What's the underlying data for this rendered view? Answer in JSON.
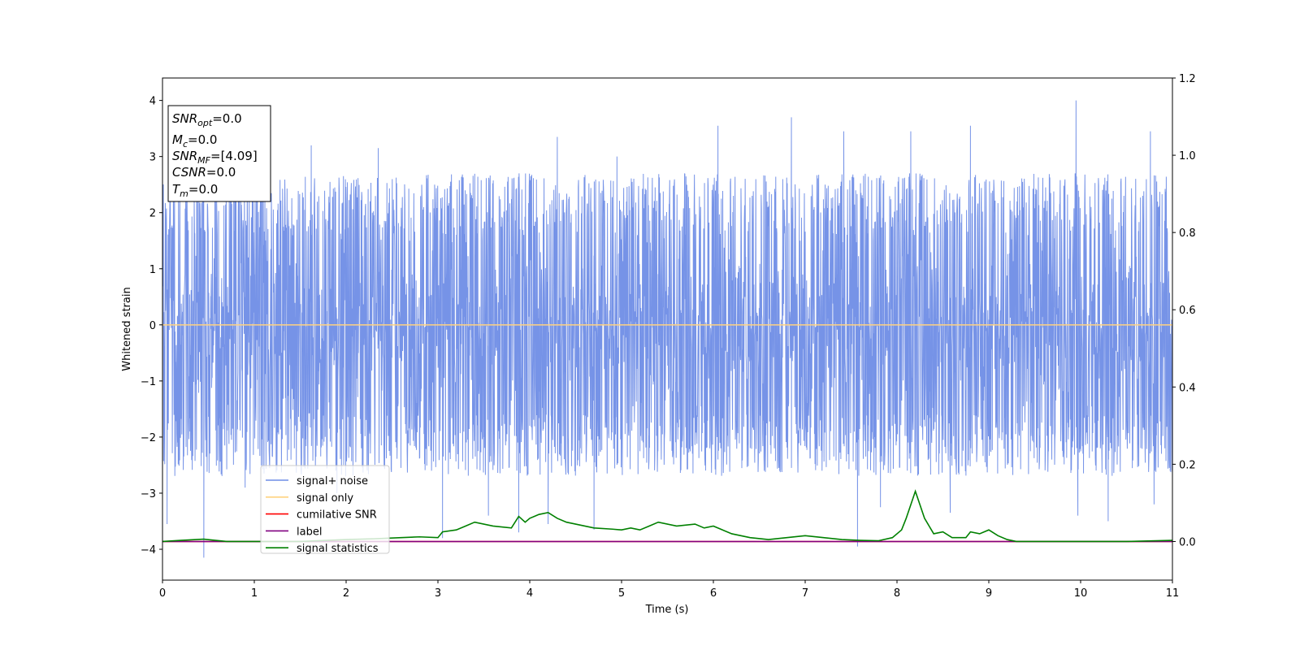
{
  "chart_data": {
    "type": "line",
    "title": "",
    "xlabel": "Time (s)",
    "ylabel": "Whitened strain",
    "xlim": [
      0,
      11
    ],
    "ylim": [
      -4.55,
      4.4
    ],
    "y2lim": [
      -0.1,
      1.2
    ],
    "x_ticks": [
      "0",
      "1",
      "2",
      "3",
      "4",
      "5",
      "6",
      "7",
      "8",
      "9",
      "10",
      "11"
    ],
    "y_ticks": [
      "−4",
      "−3",
      "−2",
      "−1",
      "0",
      "1",
      "2",
      "3",
      "4"
    ],
    "y2_ticks": [
      "0.0",
      "0.2",
      "0.4",
      "0.6",
      "0.8",
      "1.0",
      "1.2"
    ],
    "grid": false,
    "legend": {
      "placement": "lower-left",
      "entries": [
        {
          "label": "signal+ noise",
          "color": "#6f8de6"
        },
        {
          "label": "signal only",
          "color": "#ffd27f"
        },
        {
          "label": "cumilative SNR",
          "color": "#ff0000"
        },
        {
          "label": "label",
          "color": "#800080"
        },
        {
          "label": "signal statistics",
          "color": "#008000"
        }
      ]
    },
    "annotation": {
      "snr_opt": {
        "label": "SNR",
        "sub": "opt",
        "value": "=0.0"
      },
      "mc": {
        "label": "M",
        "sub": "c",
        "value": "=0.0"
      },
      "snr_mf": {
        "label": "SNR",
        "sub": "MF",
        "value": "=[4.09]"
      },
      "csnr": {
        "label": "CSNR",
        "value": "=0.0"
      },
      "tm": {
        "label": "T",
        "sub": "m",
        "value": "=0.0"
      }
    },
    "series": [
      {
        "name": "signal+ noise",
        "axis": "left",
        "color": "#6f8de6",
        "description_envelope": "dense whitened noise, typical range ±2.6, peaks near ±4",
        "spikes": [
          {
            "x": 0.05,
            "y": -3.55
          },
          {
            "x": 0.45,
            "y": -4.15
          },
          {
            "x": 0.9,
            "y": -2.9
          },
          {
            "x": 1.62,
            "y": 3.2
          },
          {
            "x": 1.9,
            "y": -3.0
          },
          {
            "x": 2.35,
            "y": 3.15
          },
          {
            "x": 3.05,
            "y": -3.8
          },
          {
            "x": 3.55,
            "y": -3.4
          },
          {
            "x": 3.88,
            "y": -3.7
          },
          {
            "x": 4.2,
            "y": -3.55
          },
          {
            "x": 4.3,
            "y": 3.35
          },
          {
            "x": 4.7,
            "y": -3.65
          },
          {
            "x": 4.95,
            "y": 3.0
          },
          {
            "x": 6.05,
            "y": 3.55
          },
          {
            "x": 6.85,
            "y": 3.7
          },
          {
            "x": 7.42,
            "y": 3.45
          },
          {
            "x": 7.57,
            "y": -3.95
          },
          {
            "x": 7.82,
            "y": -3.25
          },
          {
            "x": 8.15,
            "y": 3.45
          },
          {
            "x": 8.58,
            "y": -3.35
          },
          {
            "x": 8.8,
            "y": 3.55
          },
          {
            "x": 9.95,
            "y": 4.0
          },
          {
            "x": 9.97,
            "y": -3.4
          },
          {
            "x": 10.3,
            "y": -3.5
          },
          {
            "x": 10.76,
            "y": 3.45
          },
          {
            "x": 10.8,
            "y": -3.2
          }
        ]
      },
      {
        "name": "signal only",
        "axis": "left",
        "color": "#ffd27f",
        "x": [
          0,
          11
        ],
        "y": [
          0,
          0
        ]
      },
      {
        "name": "cumilative SNR",
        "axis": "right",
        "color": "#ff0000",
        "x": [
          0,
          11
        ],
        "y": [
          0,
          0
        ]
      },
      {
        "name": "label",
        "axis": "right",
        "color": "#800080",
        "x": [
          0,
          11
        ],
        "y": [
          0,
          0
        ]
      },
      {
        "name": "signal statistics",
        "axis": "right",
        "color": "#008000",
        "x": [
          0,
          0.2,
          0.45,
          0.7,
          1.0,
          1.5,
          2.0,
          2.3,
          2.6,
          2.8,
          3.0,
          3.05,
          3.2,
          3.3,
          3.4,
          3.6,
          3.8,
          3.88,
          3.95,
          4.0,
          4.1,
          4.2,
          4.3,
          4.4,
          4.5,
          4.6,
          4.7,
          4.9,
          5.0,
          5.1,
          5.2,
          5.3,
          5.4,
          5.6,
          5.8,
          5.9,
          6.0,
          6.2,
          6.4,
          6.6,
          6.8,
          7.0,
          7.2,
          7.4,
          7.6,
          7.8,
          7.95,
          8.05,
          8.1,
          8.2,
          8.3,
          8.4,
          8.5,
          8.6,
          8.75,
          8.8,
          8.9,
          9.0,
          9.1,
          9.2,
          9.3,
          9.6,
          10.0,
          10.5,
          11.0
        ],
        "y": [
          0.0,
          0.003,
          0.006,
          0.0,
          0.0,
          0.0,
          0.005,
          0.007,
          0.01,
          0.012,
          0.01,
          0.025,
          0.03,
          0.04,
          0.05,
          0.04,
          0.035,
          0.065,
          0.05,
          0.06,
          0.07,
          0.075,
          0.06,
          0.05,
          0.045,
          0.04,
          0.035,
          0.032,
          0.03,
          0.035,
          0.03,
          0.04,
          0.05,
          0.04,
          0.045,
          0.035,
          0.04,
          0.02,
          0.01,
          0.005,
          0.01,
          0.015,
          0.01,
          0.005,
          0.003,
          0.002,
          0.01,
          0.03,
          0.06,
          0.13,
          0.06,
          0.02,
          0.025,
          0.01,
          0.01,
          0.025,
          0.02,
          0.03,
          0.015,
          0.005,
          0.0,
          0.0,
          0.0,
          0.0,
          0.003
        ]
      }
    ]
  }
}
